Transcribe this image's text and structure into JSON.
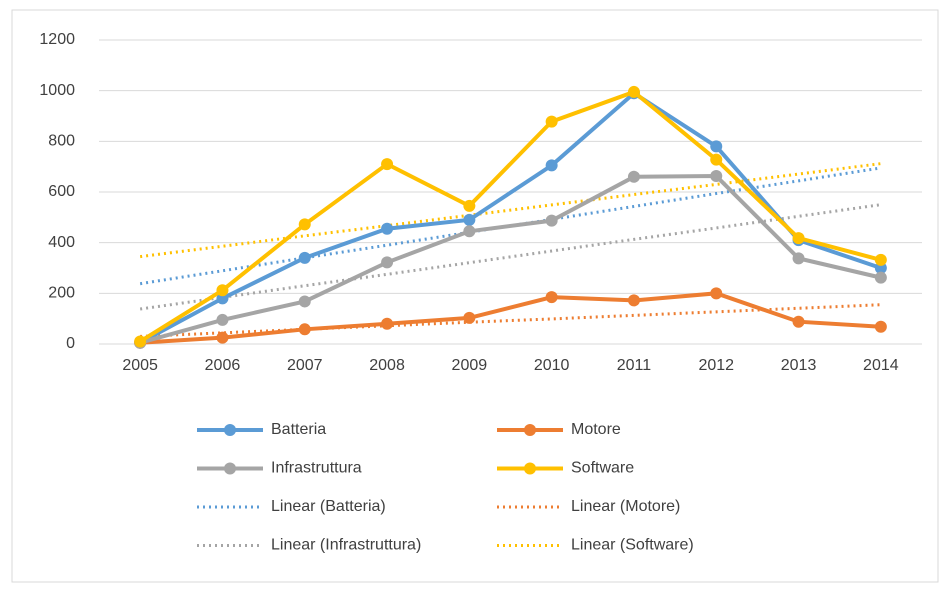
{
  "chart_data": {
    "type": "line",
    "categories": [
      "2005",
      "2006",
      "2007",
      "2008",
      "2009",
      "2010",
      "2011",
      "2012",
      "2013",
      "2014"
    ],
    "series": [
      {
        "name": "Batteria",
        "color": "#5b9bd5",
        "values": [
          5,
          180,
          340,
          455,
          490,
          705,
          990,
          780,
          410,
          300
        ]
      },
      {
        "name": "Motore",
        "color": "#ed7d31",
        "values": [
          5,
          25,
          58,
          80,
          103,
          185,
          172,
          200,
          88,
          68
        ]
      },
      {
        "name": "Infrastruttura",
        "color": "#a5a5a5",
        "values": [
          5,
          95,
          168,
          322,
          445,
          487,
          660,
          663,
          338,
          262
        ]
      },
      {
        "name": "Software",
        "color": "#ffc000",
        "values": [
          10,
          212,
          472,
          710,
          545,
          878,
          995,
          728,
          418,
          332
        ]
      },
      {
        "name": "Linear (Batteria)",
        "color": "#5b9bd5",
        "dotted": true,
        "values": [
          238,
          289,
          340,
          390,
          441,
          492,
          543,
          594,
          644,
          695
        ]
      },
      {
        "name": "Linear (Motore)",
        "color": "#ed7d31",
        "dotted": true,
        "values": [
          30,
          44,
          58,
          72,
          86,
          99,
          113,
          127,
          141,
          155
        ]
      },
      {
        "name": "Linear (Infrastruttura)",
        "color": "#a5a5a5",
        "dotted": true,
        "values": [
          138,
          184,
          230,
          275,
          321,
          367,
          413,
          458,
          504,
          550
        ]
      },
      {
        "name": "Linear (Software)",
        "color": "#ffc000",
        "dotted": true,
        "values": [
          345,
          386,
          427,
          467,
          508,
          549,
          590,
          630,
          671,
          712
        ]
      }
    ],
    "ylim": [
      0,
      1200
    ],
    "yticks": [
      0,
      200,
      400,
      600,
      800,
      1000,
      1200
    ],
    "grid": true,
    "legend": "bottom"
  }
}
